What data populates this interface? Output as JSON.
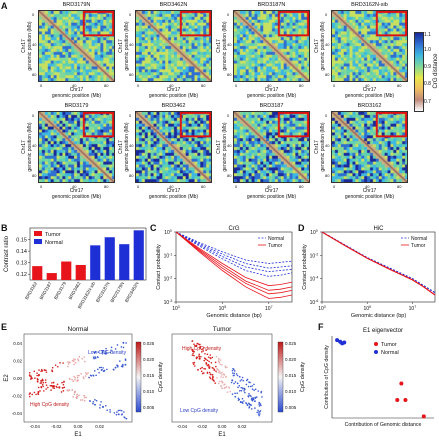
{
  "panels": {
    "A": "A",
    "B": "B",
    "C": "C",
    "D": "D",
    "E": "E",
    "F": "F"
  },
  "heatmaps": {
    "titles": [
      "BRD3179N",
      "BRD3462N",
      "BRD3187N",
      "BRD3162N-sib",
      "BRD3179",
      "BRD3462",
      "BRD3187",
      "BRD3162"
    ],
    "chr": "Chr17",
    "genomic": "genomic position (Mb)",
    "ticks": [
      "0",
      "40",
      "80"
    ],
    "yticks": [
      "0",
      "40",
      "80"
    ],
    "colorbar_label": "CrG distance",
    "colorbar_ticks": [
      "1.1",
      "1.0",
      "0.9",
      "0.8",
      "0.7"
    ]
  },
  "chart_data": [
    {
      "type": "bar",
      "panel": "B",
      "categories": [
        "BRD3162",
        "BRD3187",
        "BRD3179",
        "BRD3462",
        "BRD3162N-sib",
        "BRD3187N",
        "BRD3179N",
        "BRD3462N"
      ],
      "values": [
        0.127,
        0.121,
        0.131,
        0.128,
        0.145,
        0.152,
        0.146,
        0.158
      ],
      "groups": [
        "Tumor",
        "Tumor",
        "Tumor",
        "Tumor",
        "Normal",
        "Normal",
        "Normal",
        "Normal"
      ],
      "ylabel": "Contrast ratio",
      "ylim": [
        0.115,
        0.16
      ],
      "yticks": [
        "0.12",
        "0.13",
        "0.14",
        "0.15"
      ],
      "legend": [
        "Tumor",
        "Normal"
      ],
      "colors": {
        "Tumor": "#e8141c",
        "Normal": "#1f2fd6"
      }
    },
    {
      "type": "line",
      "panel": "C",
      "title": "CrG",
      "xlabel": "Genomic distance (bp)",
      "ylabel": "Contact probability",
      "xticks": [
        "10^3",
        "10^5",
        "10^7"
      ],
      "yticks": [
        "10^0",
        "10^-1",
        "10^-2",
        "10^-3"
      ],
      "legend": [
        "Normal",
        "Tumor"
      ],
      "x_log10": [
        3,
        4,
        5,
        6,
        7,
        7.5,
        8
      ],
      "series_log10": [
        {
          "group": "Normal",
          "values": [
            0,
            -0.45,
            -0.85,
            -1.2,
            -1.35,
            -1.3,
            -1.25
          ]
        },
        {
          "group": "Normal",
          "values": [
            0,
            -0.5,
            -0.95,
            -1.35,
            -1.55,
            -1.5,
            -1.45
          ]
        },
        {
          "group": "Normal",
          "values": [
            0,
            -0.55,
            -1.05,
            -1.5,
            -1.7,
            -1.65,
            -1.6
          ]
        },
        {
          "group": "Normal",
          "values": [
            0,
            -0.6,
            -1.15,
            -1.65,
            -1.9,
            -1.85,
            -1.75
          ]
        },
        {
          "group": "Tumor",
          "values": [
            0,
            -0.7,
            -1.35,
            -1.95,
            -2.3,
            -2.25,
            -2.15
          ]
        },
        {
          "group": "Tumor",
          "values": [
            0,
            -0.75,
            -1.45,
            -2.1,
            -2.5,
            -2.45,
            -2.35
          ]
        },
        {
          "group": "Tumor",
          "values": [
            0,
            -0.8,
            -1.55,
            -2.2,
            -2.65,
            -2.6,
            -2.5
          ]
        },
        {
          "group": "Tumor",
          "values": [
            0,
            -0.85,
            -1.65,
            -2.35,
            -2.85,
            -2.8,
            -2.7
          ]
        }
      ]
    },
    {
      "type": "line",
      "panel": "D",
      "title": "HiC",
      "xlabel": "Genomic distance (bp)",
      "ylabel": "Contact probability",
      "xticks": [
        "10^3",
        "10^5",
        "10^7"
      ],
      "yticks": [
        "10^0",
        "10^-2",
        "10^-4",
        "10^-6"
      ],
      "legend": [
        "Normal",
        "Tumor"
      ],
      "x_log10": [
        3,
        4,
        5,
        6,
        7,
        7.5,
        8
      ],
      "series_log10": [
        {
          "group": "Normal",
          "values": [
            0,
            -1.1,
            -2.2,
            -3.1,
            -4.0,
            -4.6,
            -5.2
          ]
        },
        {
          "group": "Tumor",
          "values": [
            0,
            -1.15,
            -2.25,
            -3.2,
            -4.1,
            -4.7,
            -5.4
          ]
        }
      ]
    },
    {
      "type": "scatter",
      "panel": "E",
      "subplots": [
        "Normal",
        "Tumor"
      ],
      "xlabel": "E1",
      "ylabel": "E2",
      "xticks": [
        "-0.04",
        "-0.02",
        "0.00",
        "0.02"
      ],
      "yticks": [
        "0.04",
        "0.02",
        "0.00",
        "-0.02",
        "-0.04"
      ],
      "colorbar_label": "CpG density",
      "colorbar_ticks": [
        "0.025",
        "0.020",
        "0.015",
        "0.010",
        "0.005"
      ],
      "annotations_normal": [
        "Low CpG density",
        "High CpG density"
      ],
      "annotations_tumor": [
        "High CpG density",
        "Low CpG density"
      ]
    },
    {
      "type": "scatter",
      "panel": "F",
      "title": "E1 eigenvector",
      "xlabel": "Contribution of Genomic distance",
      "ylabel": "Contribution of CpG density",
      "legend": [
        "Tumor",
        "Normal"
      ],
      "points": [
        {
          "group": "Normal",
          "x": 0.05,
          "y": 0.95
        },
        {
          "group": "Normal",
          "x": 0.08,
          "y": 0.93
        },
        {
          "group": "Normal",
          "x": 0.1,
          "y": 0.91
        },
        {
          "group": "Normal",
          "x": 0.12,
          "y": 0.92
        },
        {
          "group": "Tumor",
          "x": 0.68,
          "y": 0.42
        },
        {
          "group": "Tumor",
          "x": 0.64,
          "y": 0.22
        },
        {
          "group": "Tumor",
          "x": 0.72,
          "y": 0.22
        },
        {
          "group": "Tumor",
          "x": 0.9,
          "y": 0.02
        }
      ]
    }
  ]
}
